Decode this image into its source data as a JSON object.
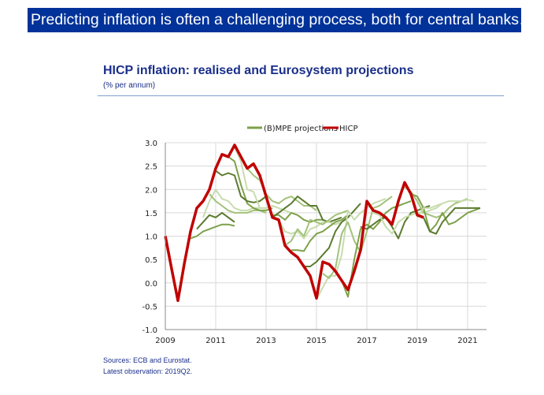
{
  "banner": "Predicting inflation is often a challenging process, both for central banks…",
  "title": "HICP inflation: realised and Eurosystem projections",
  "subtitle": "(% per annum)",
  "sources": "Sources: ECB and Eurostat.",
  "latest": "Latest observation: 2019Q2.",
  "chart_data": {
    "type": "line",
    "title": "HICP inflation: realised and Eurosystem projections",
    "ylabel": "% per annum",
    "xlim": [
      2009,
      2021.75
    ],
    "ylim": [
      -1.0,
      3.0
    ],
    "yticks": [
      "3.0",
      "2.5",
      "2.0",
      "1.5",
      "1.0",
      "0.5",
      "0.0",
      "-0.5",
      "-1.0"
    ],
    "xticks": [
      "2009",
      "2011",
      "2013",
      "2015",
      "2017",
      "2019",
      "2021"
    ],
    "grid": true,
    "legend": {
      "position": "top",
      "entries": [
        "(B)MPE projections",
        "HICP"
      ]
    },
    "colors": {
      "hicp": "#c00000",
      "projections": [
        "#5b7a2e",
        "#7ea14a",
        "#a3c27a",
        "#c8dcae"
      ]
    },
    "hicp": {
      "name": "HICP",
      "start": 2009.0,
      "step": 0.25,
      "values": [
        1.0,
        0.3,
        -0.38,
        0.4,
        1.1,
        1.6,
        1.75,
        2.0,
        2.45,
        2.75,
        2.7,
        2.95,
        2.7,
        2.45,
        2.55,
        2.3,
        1.85,
        1.4,
        1.35,
        0.8,
        0.65,
        0.55,
        0.35,
        0.15,
        -0.33,
        0.45,
        0.4,
        0.25,
        0.05,
        -0.15,
        0.25,
        0.7,
        1.75,
        1.55,
        1.5,
        1.4,
        1.25,
        1.75,
        2.15,
        1.9,
        1.45,
        1.4
      ]
    },
    "projections": {
      "name": "(B)MPE projections",
      "step": 0.25,
      "series": [
        {
          "start": 2010.0,
          "values": [
            0.95,
            1.0,
            1.1,
            1.15,
            1.2,
            1.25,
            1.25,
            1.22
          ]
        },
        {
          "start": 2010.25,
          "values": [
            1.15,
            1.3,
            1.45,
            1.4,
            1.5,
            1.4,
            1.3
          ]
        },
        {
          "start": 2010.5,
          "values": [
            1.4,
            1.75,
            2.0,
            1.8,
            1.75,
            1.6,
            1.55,
            1.55,
            1.6,
            1.6
          ]
        },
        {
          "start": 2010.75,
          "values": [
            1.9,
            1.75,
            1.65,
            1.55,
            1.5,
            1.5,
            1.5,
            1.55,
            1.55,
            1.5
          ]
        },
        {
          "start": 2011.25,
          "values": [
            2.75,
            2.7,
            2.6,
            2.1,
            1.7,
            1.6,
            1.55,
            1.55,
            1.6
          ]
        },
        {
          "start": 2011.0,
          "values": [
            2.4,
            2.3,
            2.35,
            2.3,
            1.85,
            1.75,
            1.72,
            1.75,
            1.85
          ]
        },
        {
          "start": 2011.75,
          "values": [
            2.9,
            2.6,
            2.0,
            1.95,
            1.6,
            1.6,
            1.65,
            1.6,
            1.55,
            1.5
          ]
        },
        {
          "start": 2012.25,
          "values": [
            2.45,
            2.3,
            2.2,
            1.9,
            1.75,
            1.7,
            1.8,
            1.85,
            1.75,
            1.65,
            1.65,
            1.55
          ]
        },
        {
          "start": 2012.75,
          "values": [
            2.3,
            1.8,
            1.45,
            1.45,
            1.35,
            1.5,
            1.45,
            1.35,
            1.3,
            1.35,
            1.35
          ]
        },
        {
          "start": 2013.25,
          "values": [
            1.4,
            1.5,
            1.6,
            1.7,
            1.85,
            1.75,
            1.65,
            1.65,
            1.35,
            1.3,
            1.35,
            1.4
          ]
        },
        {
          "start": 2013.5,
          "values": [
            1.35,
            1.1,
            1.05,
            1.1,
            0.95,
            1.15,
            1.2,
            1.3,
            1.3,
            1.25,
            1.3,
            1.4
          ]
        },
        {
          "start": 2013.75,
          "values": [
            0.8,
            0.9,
            1.15,
            1.0,
            1.35,
            1.3,
            1.25,
            1.35,
            1.45,
            1.5,
            1.55
          ]
        },
        {
          "start": 2014.0,
          "values": [
            0.7,
            0.7,
            0.68,
            0.9,
            1.05,
            1.1,
            1.2,
            1.3,
            1.35,
            1.45
          ]
        },
        {
          "start": 2014.5,
          "values": [
            0.35,
            0.35,
            0.45,
            0.6,
            0.75,
            1.1,
            1.3,
            1.4,
            1.55,
            1.7
          ]
        },
        {
          "start": 2015.0,
          "values": [
            -0.35,
            -0.1,
            0.15,
            0.15,
            0.6,
            1.55,
            1.35,
            1.5,
            1.6,
            1.7,
            1.75,
            1.8
          ]
        },
        {
          "start": 2015.25,
          "values": [
            0.2,
            0.1,
            0.3,
            1.05,
            1.3,
            0.9,
            0.65,
            1.1,
            1.6,
            1.65,
            1.75,
            1.85
          ]
        },
        {
          "start": 2016.0,
          "values": [
            0.05,
            -0.3,
            0.5,
            1.15,
            1.25,
            1.15,
            1.3,
            1.5,
            1.6,
            1.65,
            1.7,
            1.75
          ]
        },
        {
          "start": 2016.75,
          "values": [
            1.2,
            1.15,
            1.25,
            1.35,
            1.4,
            1.2,
            0.95,
            1.3,
            1.5,
            1.55,
            1.6,
            1.65
          ]
        },
        {
          "start": 2017.25,
          "values": [
            1.5,
            1.45,
            1.2,
            1.05,
            1.3,
            1.4,
            1.45,
            1.5,
            1.5,
            1.55,
            1.6,
            1.7
          ]
        },
        {
          "start": 2018.5,
          "values": [
            2.05,
            1.95,
            1.75,
            1.5,
            1.45,
            1.4,
            1.45,
            1.6,
            1.7,
            1.75,
            1.8
          ]
        },
        {
          "start": 2018.75,
          "values": [
            1.9,
            1.85,
            1.6,
            1.1,
            1.25,
            1.5,
            1.25,
            1.3,
            1.4,
            1.5,
            1.55,
            1.6
          ]
        },
        {
          "start": 2019.25,
          "values": [
            1.4,
            1.1,
            1.05,
            1.3,
            1.45,
            1.6,
            1.6,
            1.6,
            1.6,
            1.6
          ]
        },
        {
          "start": 2019.0,
          "values": [
            1.4,
            1.6,
            1.6,
            1.65,
            1.7,
            1.75,
            1.75,
            1.75,
            1.78,
            1.75
          ]
        }
      ]
    }
  }
}
